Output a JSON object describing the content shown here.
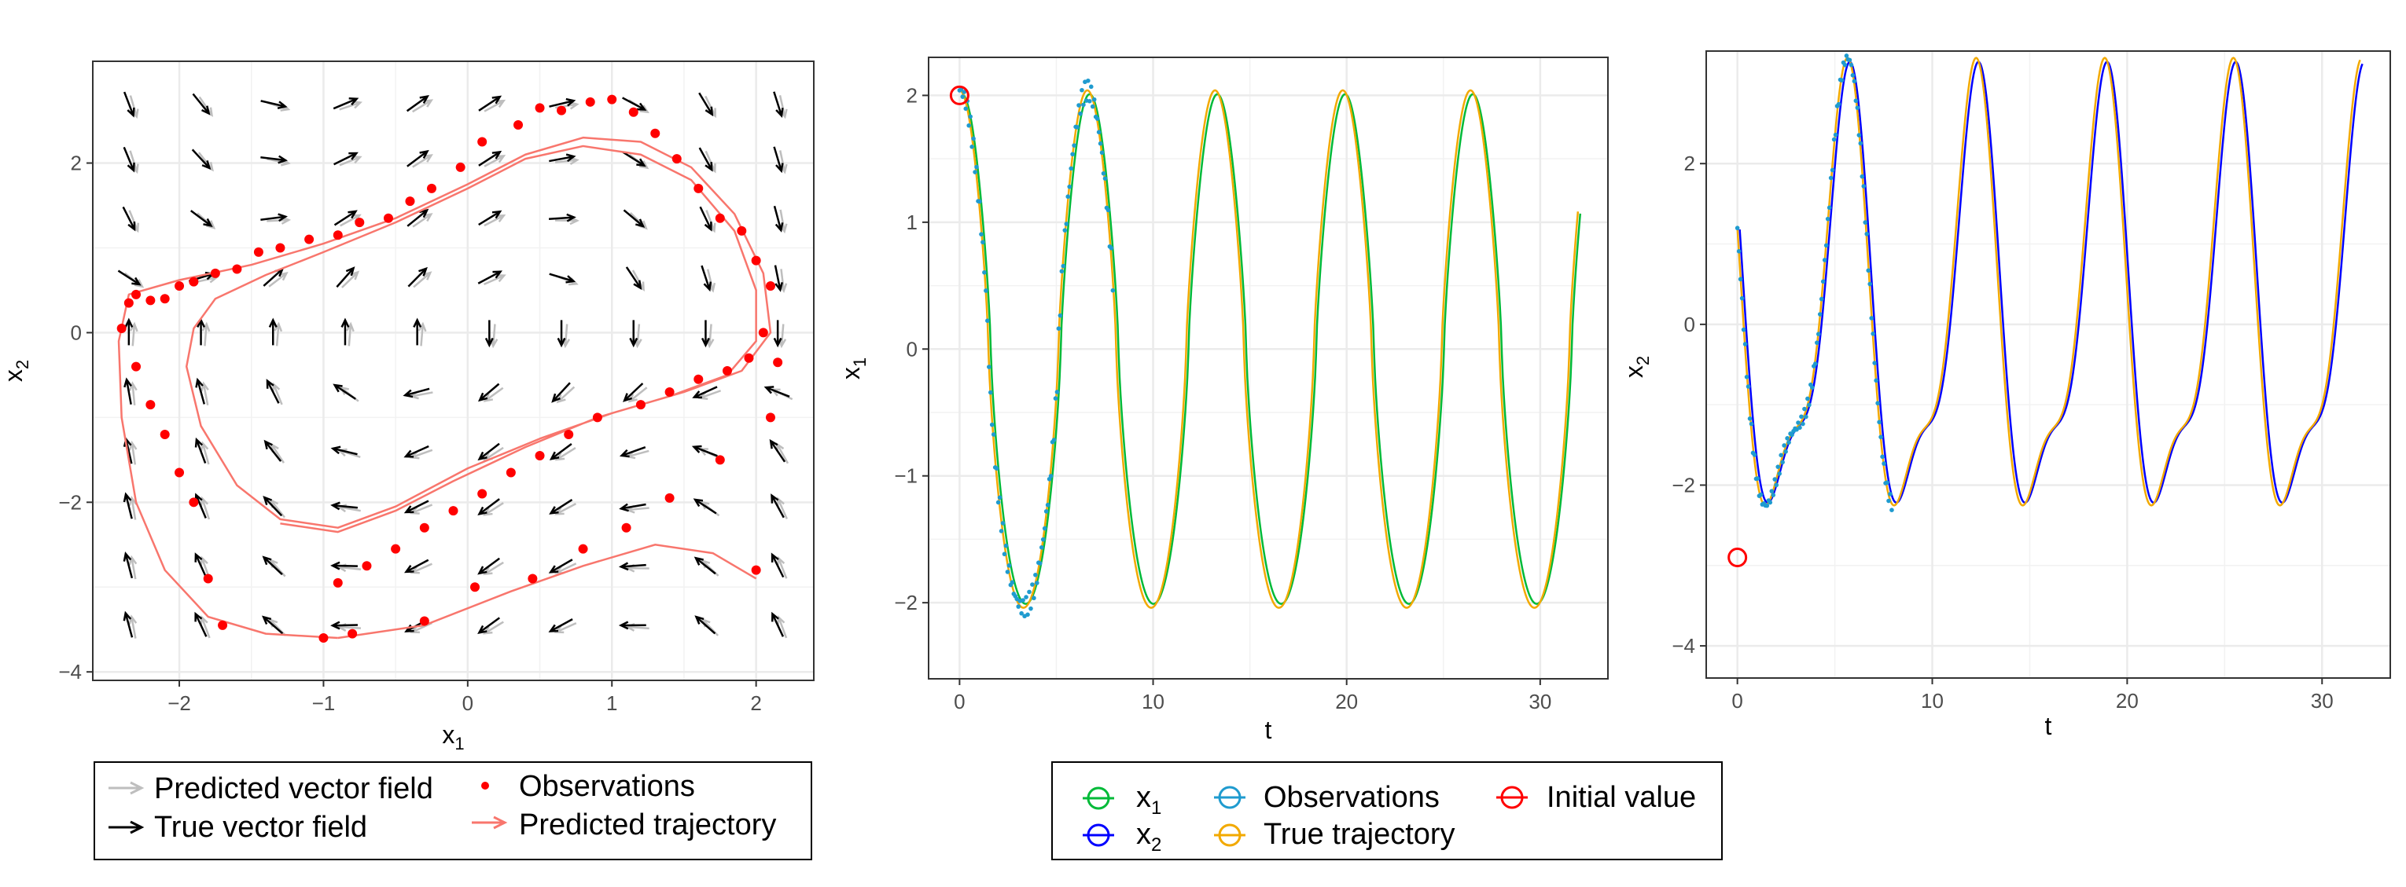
{
  "chart_data": [
    {
      "type": "scatter",
      "panel": "phase-portrait",
      "xlabel": "x",
      "xlabel_sub": "1",
      "ylabel": "x",
      "ylabel_sub": "2",
      "xlim": [
        -2.6,
        2.4
      ],
      "ylim": [
        -4.1,
        3.2
      ],
      "xticks": [
        -2,
        -1,
        0,
        1,
        2
      ],
      "yticks": [
        -4,
        -2,
        0,
        2
      ],
      "grid": true,
      "legend_position": "bottom",
      "legend": [
        {
          "label": "Predicted vector field",
          "glyph": "arrow",
          "color": "#bebebe"
        },
        {
          "label": "Observations",
          "glyph": "point",
          "color": "#ff0000"
        },
        {
          "label": "True vector field",
          "glyph": "arrow",
          "color": "#000000"
        },
        {
          "label": "Predicted trajectory",
          "glyph": "arrow",
          "color": "#f8766d"
        }
      ],
      "vector_field": {
        "x": [
          -2.35,
          -1.85,
          -1.35,
          -0.85,
          -0.35,
          0.15,
          0.65,
          1.15,
          1.65,
          2.15
        ],
        "y": [
          2.7,
          2.05,
          1.35,
          0.65,
          0.0,
          -0.7,
          -1.4,
          -2.05,
          -2.75,
          -3.45
        ]
      },
      "observations": [
        {
          "x": -2.4,
          "y": 0.05
        },
        {
          "x": -2.35,
          "y": 0.35
        },
        {
          "x": -2.3,
          "y": 0.45
        },
        {
          "x": -2.2,
          "y": 0.38
        },
        {
          "x": -2.1,
          "y": 0.4
        },
        {
          "x": -2.0,
          "y": 0.55
        },
        {
          "x": -1.9,
          "y": 0.6
        },
        {
          "x": -1.75,
          "y": 0.7
        },
        {
          "x": -1.6,
          "y": 0.75
        },
        {
          "x": -1.45,
          "y": 0.95
        },
        {
          "x": -1.3,
          "y": 1.0
        },
        {
          "x": -1.1,
          "y": 1.1
        },
        {
          "x": -0.9,
          "y": 1.15
        },
        {
          "x": -0.75,
          "y": 1.3
        },
        {
          "x": -0.55,
          "y": 1.35
        },
        {
          "x": -0.4,
          "y": 1.55
        },
        {
          "x": -0.25,
          "y": 1.7
        },
        {
          "x": -0.05,
          "y": 1.95
        },
        {
          "x": 0.1,
          "y": 2.25
        },
        {
          "x": 0.35,
          "y": 2.45
        },
        {
          "x": 0.5,
          "y": 2.65
        },
        {
          "x": 0.65,
          "y": 2.62
        },
        {
          "x": 0.85,
          "y": 2.72
        },
        {
          "x": 1.0,
          "y": 2.75
        },
        {
          "x": 1.15,
          "y": 2.6
        },
        {
          "x": 1.3,
          "y": 2.35
        },
        {
          "x": 1.45,
          "y": 2.05
        },
        {
          "x": 1.6,
          "y": 1.7
        },
        {
          "x": 1.75,
          "y": 1.35
        },
        {
          "x": 1.9,
          "y": 1.2
        },
        {
          "x": 2.0,
          "y": 0.85
        },
        {
          "x": 2.1,
          "y": 0.55
        },
        {
          "x": 2.05,
          "y": 0.0
        },
        {
          "x": 1.95,
          "y": -0.3
        },
        {
          "x": 1.8,
          "y": -0.45
        },
        {
          "x": 1.6,
          "y": -0.55
        },
        {
          "x": 1.4,
          "y": -0.7
        },
        {
          "x": 1.2,
          "y": -0.85
        },
        {
          "x": 0.9,
          "y": -1.0
        },
        {
          "x": 0.7,
          "y": -1.2
        },
        {
          "x": 0.5,
          "y": -1.45
        },
        {
          "x": 0.3,
          "y": -1.65
        },
        {
          "x": 0.1,
          "y": -1.9
        },
        {
          "x": -0.1,
          "y": -2.1
        },
        {
          "x": -0.3,
          "y": -2.3
        },
        {
          "x": -0.5,
          "y": -2.55
        },
        {
          "x": -0.7,
          "y": -2.75
        },
        {
          "x": -0.9,
          "y": -2.95
        },
        {
          "x": -2.3,
          "y": -0.4
        },
        {
          "x": -2.2,
          "y": -0.85
        },
        {
          "x": -2.1,
          "y": -1.2
        },
        {
          "x": -2.0,
          "y": -1.65
        },
        {
          "x": -1.9,
          "y": -2.0
        },
        {
          "x": -1.8,
          "y": -2.9
        },
        {
          "x": -1.7,
          "y": -3.45
        },
        {
          "x": -1.0,
          "y": -3.6
        },
        {
          "x": -0.8,
          "y": -3.55
        },
        {
          "x": -0.3,
          "y": -3.4
        },
        {
          "x": 0.05,
          "y": -3.0
        },
        {
          "x": 0.45,
          "y": -2.9
        },
        {
          "x": 0.8,
          "y": -2.55
        },
        {
          "x": 1.1,
          "y": -2.3
        },
        {
          "x": 1.4,
          "y": -1.95
        },
        {
          "x": 1.75,
          "y": -1.5
        },
        {
          "x": 2.0,
          "y": -2.8
        },
        {
          "x": 2.1,
          "y": -1.0
        },
        {
          "x": 2.15,
          "y": -0.35
        }
      ]
    },
    {
      "type": "line",
      "panel": "x1-vs-t",
      "xlabel": "t",
      "ylabel": "x",
      "ylabel_sub": "1",
      "xlim": [
        -1.6,
        33.5
      ],
      "ylim": [
        -2.6,
        2.3
      ],
      "xticks": [
        0,
        10,
        20,
        30
      ],
      "yticks": [
        -2,
        -1,
        0,
        1,
        2
      ],
      "grid": true,
      "legend_position": "bottom",
      "initial_value": {
        "t": 0,
        "y": 2.0
      },
      "waveform": {
        "period": 6.6,
        "amplitude": 2.04,
        "t_end": 32
      },
      "series": [
        {
          "name": "x",
          "name_sub": "1",
          "color": "#00ba38",
          "role": "predicted"
        },
        {
          "name": "Observations",
          "color": "#1f9bcf",
          "role": "observations",
          "t_range": [
            0,
            8
          ]
        },
        {
          "name": "True trajectory",
          "color": "#f2a900",
          "role": "true"
        }
      ]
    },
    {
      "type": "line",
      "panel": "x2-vs-t",
      "xlabel": "t",
      "ylabel": "x",
      "ylabel_sub": "2",
      "xlim": [
        -1.6,
        33.5
      ],
      "ylim": [
        -4.4,
        3.4
      ],
      "xticks": [
        0,
        10,
        20,
        30
      ],
      "yticks": [
        -4,
        -2,
        0,
        2
      ],
      "grid": true,
      "legend_position": "bottom",
      "initial_value": {
        "t": 0,
        "y": -2.9
      },
      "waveform": {
        "period": 6.6,
        "amplitude": 2.5,
        "t_end": 32
      },
      "series": [
        {
          "name": "x",
          "name_sub": "2",
          "color": "#0000ff",
          "role": "predicted"
        },
        {
          "name": "Observations",
          "color": "#1f9bcf",
          "role": "observations",
          "t_range": [
            0,
            8
          ]
        },
        {
          "name": "True trajectory",
          "color": "#f2a900",
          "role": "true"
        }
      ]
    }
  ],
  "legend_right": [
    {
      "label": "x",
      "sub": "1",
      "color": "#00ba38"
    },
    {
      "label": "x",
      "sub": "2",
      "color": "#0000ff"
    },
    {
      "label": "Observations",
      "color": "#1f9bcf"
    },
    {
      "label": "True trajectory",
      "color": "#f2a900"
    },
    {
      "label": "Initial value",
      "color": "#ff0000"
    }
  ]
}
